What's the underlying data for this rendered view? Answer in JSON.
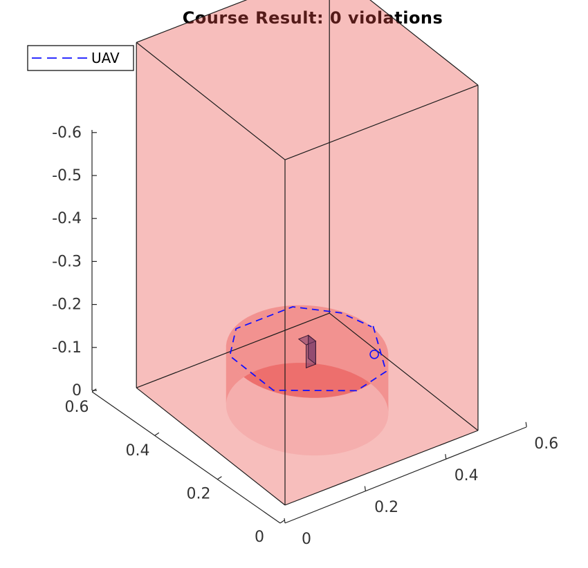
{
  "chart_data": {
    "type": "3d-plot",
    "title": "Course Result: 0 violations",
    "legend": {
      "position": "top-left",
      "entries": [
        "UAV"
      ]
    },
    "axes": {
      "x": {
        "range": [
          0,
          0.6
        ],
        "ticks": [
          "0",
          "0.2",
          "0.4",
          "0.6"
        ]
      },
      "y": {
        "range": [
          0,
          0.6
        ],
        "ticks": [
          "0",
          "0.2",
          "0.4",
          "0.6"
        ]
      },
      "z": {
        "range": [
          0,
          -0.6
        ],
        "ticks": [
          "0",
          "-0.1",
          "-0.2",
          "-0.3",
          "-0.4",
          "-0.5",
          "-0.6"
        ]
      },
      "grid": false
    },
    "objects": [
      {
        "kind": "box",
        "name": "boundary",
        "x": [
          0,
          0.6
        ],
        "y": [
          0,
          0.6
        ],
        "z": [
          0,
          -0.6
        ],
        "color": "#e8423f",
        "alpha": 0.6
      },
      {
        "kind": "cylinder",
        "name": "course",
        "center": [
          0.3,
          0.3
        ],
        "radius": 0.2,
        "z": [
          0,
          -0.1
        ],
        "color": "#e8423f",
        "alpha": 0.6
      },
      {
        "kind": "box",
        "name": "uav",
        "x": [
          0.285,
          0.315
        ],
        "y": [
          0.285,
          0.315
        ],
        "z": [
          -0.08,
          -0.12
        ],
        "color": "#7a3a6a"
      }
    ],
    "series": [
      {
        "name": "UAV",
        "style": "dashed",
        "color": "#1010ff",
        "points": [
          [
            0.505,
            0.3,
            -0.1
          ],
          [
            0.412,
            0.127,
            -0.1
          ],
          [
            0.3,
            0.1,
            -0.1
          ],
          [
            0.127,
            0.212,
            -0.1
          ],
          [
            0.127,
            0.388,
            -0.1
          ],
          [
            0.212,
            0.473,
            -0.1
          ],
          [
            0.388,
            0.473,
            -0.1
          ],
          [
            0.473,
            0.388,
            -0.1
          ],
          [
            0.5,
            0.3,
            -0.1
          ]
        ]
      }
    ],
    "markers": [
      {
        "name": "end",
        "shape": "circle",
        "at": [
          0.5,
          0.3,
          -0.1
        ],
        "color": "#1010ff"
      }
    ]
  }
}
